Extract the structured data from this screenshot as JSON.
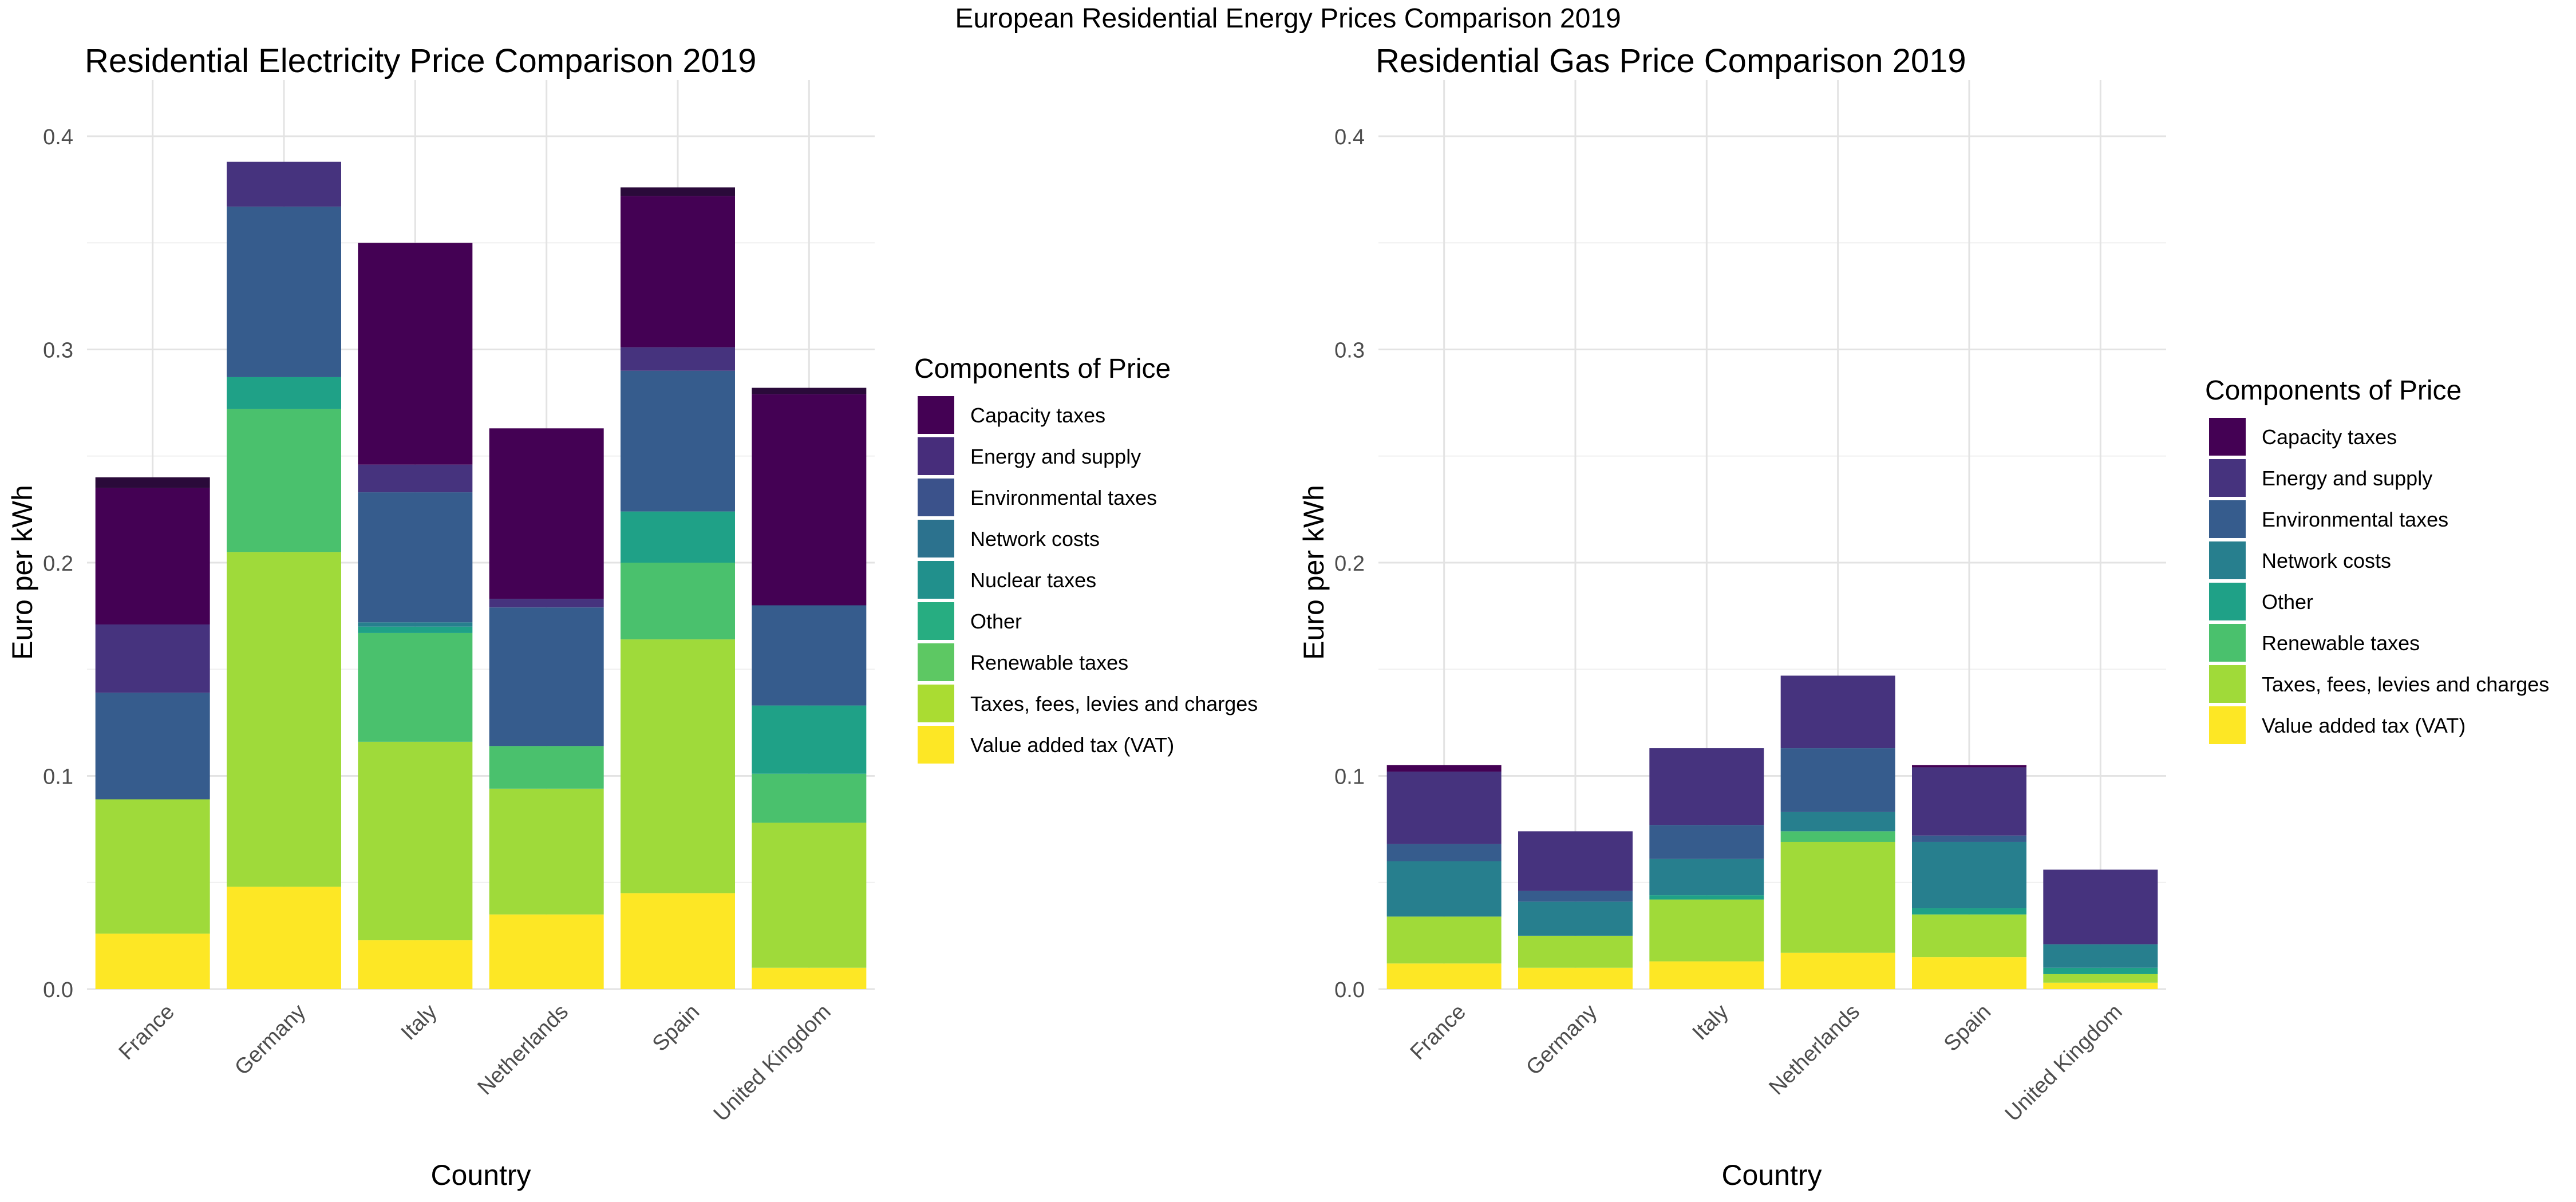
{
  "figure_title": "European Residential Energy Prices Comparison 2019",
  "chart_data": [
    {
      "type": "bar",
      "stacked": true,
      "title": "Residential Electricity Price Comparison 2019",
      "xlabel": "Country",
      "ylabel": "Euro per kWh",
      "ylim": [
        0,
        0.42
      ],
      "yticks": [
        0.0,
        0.1,
        0.2,
        0.3,
        0.4
      ],
      "ytick_labels": [
        "0.0",
        "0.1",
        "0.2",
        "0.3",
        "0.4"
      ],
      "grid": true,
      "legend_position": "right",
      "legend_title": "Components of Price",
      "categories": [
        "France",
        "Germany",
        "Italy",
        "Netherlands",
        "Spain",
        "United Kingdom"
      ],
      "series": [
        {
          "name": "Value added tax (VAT)",
          "color": "#FDE725",
          "values": [
            0.026,
            0.048,
            0.023,
            0.035,
            0.045,
            0.01
          ]
        },
        {
          "name": "Taxes, fees, levies and charges",
          "color": "#9FDA3A",
          "values": [
            0.063,
            0.157,
            0.093,
            0.059,
            0.119,
            0.068
          ]
        },
        {
          "name": "Renewable taxes",
          "color": "#4AC16D",
          "values": [
            0.0,
            0.067,
            0.051,
            0.02,
            0.036,
            0.023
          ]
        },
        {
          "name": "Other",
          "color": "#1FA187",
          "values": [
            0.0,
            0.015,
            0.003,
            0.0,
            0.024,
            0.032
          ]
        },
        {
          "name": "Nuclear taxes",
          "color": "#277F8E",
          "values": [
            0.0,
            0.0,
            0.002,
            0.0,
            0.0,
            0.0
          ]
        },
        {
          "name": "Network costs",
          "color": "#365C8D",
          "values": [
            0.05,
            0.08,
            0.061,
            0.065,
            0.066,
            0.047
          ]
        },
        {
          "name": "Environmental taxes",
          "color": "#46337E",
          "values": [
            0.032,
            0.021,
            0.013,
            0.004,
            0.011,
            0.0
          ]
        },
        {
          "name": "Energy and supply",
          "color": "#440154",
          "values": [
            0.064,
            0.0,
            0.104,
            0.08,
            0.071,
            0.099
          ]
        },
        {
          "name": "Capacity taxes",
          "color": "#2A0A3A",
          "values": [
            0.005,
            0.0,
            0.0,
            0.0,
            0.004,
            0.003
          ]
        }
      ]
    },
    {
      "type": "bar",
      "stacked": true,
      "title": "Residential Gas Price Comparison 2019",
      "xlabel": "Country",
      "ylabel": "Euro per kWh",
      "ylim": [
        0,
        0.42
      ],
      "yticks": [
        0.0,
        0.1,
        0.2,
        0.3,
        0.4
      ],
      "ytick_labels": [
        "0.0",
        "0.1",
        "0.2",
        "0.3",
        "0.4"
      ],
      "grid": true,
      "legend_position": "right",
      "legend_title": "Components of Price",
      "categories": [
        "France",
        "Germany",
        "Italy",
        "Netherlands",
        "Spain",
        "United Kingdom"
      ],
      "series": [
        {
          "name": "Value added tax (VAT)",
          "color": "#FDE725",
          "values": [
            0.012,
            0.01,
            0.013,
            0.017,
            0.015,
            0.003
          ]
        },
        {
          "name": "Taxes, fees, levies and charges",
          "color": "#A0DA39",
          "values": [
            0.022,
            0.015,
            0.029,
            0.052,
            0.02,
            0.004
          ]
        },
        {
          "name": "Renewable taxes",
          "color": "#4AC16D",
          "values": [
            0.0,
            0.0,
            0.0,
            0.005,
            0.0,
            0.0
          ]
        },
        {
          "name": "Other",
          "color": "#1FA187",
          "values": [
            0.0,
            0.0,
            0.002,
            0.0,
            0.003,
            0.003
          ]
        },
        {
          "name": "Network costs",
          "color": "#277F8E",
          "values": [
            0.026,
            0.016,
            0.017,
            0.009,
            0.031,
            0.011
          ]
        },
        {
          "name": "Environmental taxes",
          "color": "#365C8D",
          "values": [
            0.008,
            0.005,
            0.016,
            0.03,
            0.003,
            0.0
          ]
        },
        {
          "name": "Energy and supply",
          "color": "#46337E",
          "values": [
            0.034,
            0.028,
            0.036,
            0.034,
            0.032,
            0.035
          ]
        },
        {
          "name": "Capacity taxes",
          "color": "#440154",
          "values": [
            0.003,
            0.0,
            0.0,
            0.0,
            0.001,
            0.0
          ]
        }
      ]
    }
  ],
  "legends": [
    {
      "title": "Components of Price",
      "items": [
        {
          "label": "Capacity taxes",
          "color": "#440154"
        },
        {
          "label": "Energy and supply",
          "color": "#472D7B"
        },
        {
          "label": "Environmental taxes",
          "color": "#3B528B"
        },
        {
          "label": "Network costs",
          "color": "#2C728E"
        },
        {
          "label": "Nuclear taxes",
          "color": "#21908C"
        },
        {
          "label": "Other",
          "color": "#27AD81"
        },
        {
          "label": "Renewable taxes",
          "color": "#5DC863"
        },
        {
          "label": "Taxes, fees, levies and charges",
          "color": "#AADC32"
        },
        {
          "label": "Value added tax (VAT)",
          "color": "#FDE725"
        }
      ]
    },
    {
      "title": "Components of Price",
      "items": [
        {
          "label": "Capacity taxes",
          "color": "#440154"
        },
        {
          "label": "Energy and supply",
          "color": "#46337E"
        },
        {
          "label": "Environmental taxes",
          "color": "#365C8D"
        },
        {
          "label": "Network costs",
          "color": "#277F8E"
        },
        {
          "label": "Other",
          "color": "#1FA187"
        },
        {
          "label": "Renewable taxes",
          "color": "#4AC16D"
        },
        {
          "label": "Taxes, fees, levies and charges",
          "color": "#A0DA39"
        },
        {
          "label": "Value added tax (VAT)",
          "color": "#FDE725"
        }
      ]
    }
  ]
}
